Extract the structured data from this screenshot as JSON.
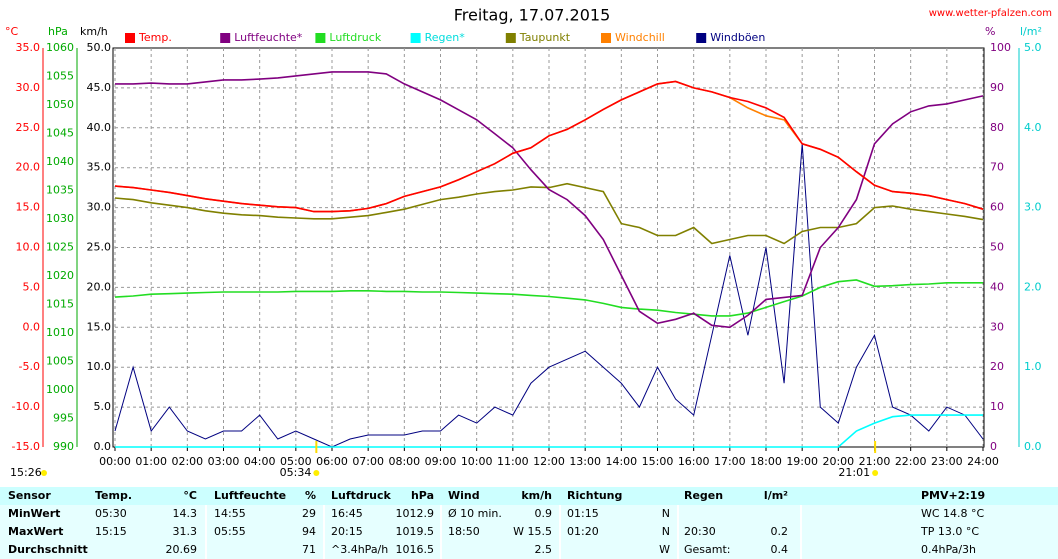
{
  "chart_data": {
    "type": "line",
    "title": "Freitag, 17.07.2015",
    "source": "www.wetter-pfalzen.com",
    "x": [
      0,
      0.5,
      1,
      1.5,
      2,
      2.5,
      3,
      3.5,
      4,
      4.5,
      5,
      5.5,
      6,
      6.5,
      7,
      7.5,
      8,
      8.5,
      9,
      9.5,
      10,
      10.5,
      11,
      11.5,
      12,
      12.5,
      13,
      13.5,
      14,
      14.5,
      15,
      15.5,
      16,
      16.5,
      17,
      17.5,
      18,
      18.5,
      19,
      19.5,
      20,
      20.5,
      21,
      21.5,
      22,
      22.5,
      23,
      23.5,
      24
    ],
    "xlim": [
      0,
      24
    ],
    "xticks": [
      {
        "value": 0,
        "label": "00:00"
      },
      {
        "value": 1,
        "label": "01:00"
      },
      {
        "value": 2,
        "label": "02:00"
      },
      {
        "value": 3,
        "label": "03:00"
      },
      {
        "value": 4,
        "label": "04:00"
      },
      {
        "value": 5,
        "label": "05:00"
      },
      {
        "value": 6,
        "label": "06:00"
      },
      {
        "value": 7,
        "label": "07:00"
      },
      {
        "value": 8,
        "label": "08:00"
      },
      {
        "value": 9,
        "label": "09:00"
      },
      {
        "value": 10,
        "label": "10:00"
      },
      {
        "value": 11,
        "label": "11:00"
      },
      {
        "value": 12,
        "label": "12:00"
      },
      {
        "value": 13,
        "label": "13:00"
      },
      {
        "value": 14,
        "label": "14:00"
      },
      {
        "value": 15,
        "label": "15:00"
      },
      {
        "value": 16,
        "label": "16:00"
      },
      {
        "value": 17,
        "label": "17:00"
      },
      {
        "value": 18,
        "label": "18:00"
      },
      {
        "value": 19,
        "label": "19:00"
      },
      {
        "value": 20,
        "label": "20:00"
      },
      {
        "value": 21,
        "label": "21:00"
      },
      {
        "value": 22,
        "label": "22:00"
      },
      {
        "value": 23,
        "label": "23:00"
      },
      {
        "value": 24,
        "label": "24:00"
      }
    ],
    "axes": [
      {
        "label": "°C",
        "color": "#ff0000",
        "side": "left",
        "lim": [
          -15,
          35
        ],
        "ticks": [
          {
            "value": 35,
            "label": "35.0"
          },
          {
            "value": 30,
            "label": "30.0"
          },
          {
            "value": 25,
            "label": "25.0"
          },
          {
            "value": 20,
            "label": "20.0"
          },
          {
            "value": 15,
            "label": "15.0"
          },
          {
            "value": 10,
            "label": "10.0"
          },
          {
            "value": 5,
            "label": "5.0"
          },
          {
            "value": 0,
            "label": "0.0"
          },
          {
            "value": -5,
            "label": "-5.0"
          },
          {
            "value": -10,
            "label": "-10.0"
          },
          {
            "value": -15,
            "label": "-15.0"
          }
        ]
      },
      {
        "label": "hPa",
        "color": "#00aa00",
        "side": "left",
        "lim": [
          990,
          1060
        ],
        "ticks": [
          1060,
          1055,
          1050,
          1045,
          1040,
          1035,
          1030,
          1025,
          1020,
          1015,
          1010,
          1005,
          1000,
          995,
          990
        ]
      },
      {
        "label": "km/h",
        "color": "#000000",
        "side": "left",
        "lim": [
          0,
          50
        ],
        "ticks": [
          {
            "value": 50,
            "label": "50.0"
          },
          {
            "value": 45,
            "label": "45.0"
          },
          {
            "value": 40,
            "label": "40.0"
          },
          {
            "value": 35,
            "label": "35.0"
          },
          {
            "value": 30,
            "label": "30.0"
          },
          {
            "value": 25,
            "label": "25.0"
          },
          {
            "value": 20,
            "label": "20.0"
          },
          {
            "value": 15,
            "label": "15.0"
          },
          {
            "value": 10,
            "label": "10.0"
          },
          {
            "value": 5,
            "label": "5.0"
          },
          {
            "value": 0,
            "label": "0.0"
          }
        ]
      },
      {
        "label": "%",
        "color": "#800080",
        "side": "right",
        "lim": [
          0,
          100
        ],
        "ticks": [
          100,
          90,
          80,
          70,
          60,
          50,
          40,
          30,
          20,
          10,
          0
        ]
      },
      {
        "label": "l/m²",
        "color": "#00cccc",
        "side": "right",
        "lim": [
          0,
          5
        ],
        "ticks": [
          {
            "value": 5,
            "label": "5.0"
          },
          {
            "value": 4,
            "label": "4.0"
          },
          {
            "value": 3,
            "label": "3.0"
          },
          {
            "value": 2,
            "label": "2.0"
          },
          {
            "value": 1,
            "label": "1.0"
          },
          {
            "value": 0,
            "label": "0.0"
          }
        ]
      }
    ],
    "grid": true,
    "series": [
      {
        "name": "Temp.",
        "color": "#ff0000",
        "axis": 0,
        "values": [
          17.7,
          17.5,
          17.2,
          16.9,
          16.5,
          16.1,
          15.8,
          15.5,
          15.3,
          15.1,
          15.0,
          14.5,
          14.5,
          14.6,
          14.9,
          15.5,
          16.4,
          17.0,
          17.6,
          18.5,
          19.5,
          20.5,
          21.8,
          22.5,
          24.0,
          24.8,
          26.0,
          27.3,
          28.5,
          29.5,
          30.5,
          30.8,
          30.0,
          29.5,
          28.8,
          28.3,
          27.5,
          26.3,
          23.0,
          22.3,
          21.3,
          19.5,
          17.8,
          17.0,
          16.8,
          16.5,
          16.0,
          15.5,
          14.8
        ]
      },
      {
        "name": "Luftfeuchte*",
        "color": "#800080",
        "axis": 3,
        "values": [
          91,
          91,
          91.2,
          91,
          91,
          91.5,
          92,
          92,
          92.2,
          92.5,
          93,
          93.5,
          94,
          94,
          94,
          93.5,
          91,
          89,
          87,
          84.5,
          82,
          78.5,
          75,
          69.5,
          64.5,
          62,
          58,
          52,
          43,
          34,
          31,
          32,
          33.5,
          30.5,
          30,
          33,
          37,
          37.5,
          38,
          50,
          55,
          62,
          76,
          81,
          84,
          85.5,
          86,
          87,
          88
        ]
      },
      {
        "name": "Luftdruck",
        "color": "#22dd22",
        "axis": 1,
        "values": [
          1016.3,
          1016.5,
          1016.8,
          1016.9,
          1017,
          1017.1,
          1017.2,
          1017.2,
          1017.2,
          1017.2,
          1017.3,
          1017.3,
          1017.3,
          1017.4,
          1017.4,
          1017.3,
          1017.3,
          1017.2,
          1017.2,
          1017.1,
          1017,
          1016.9,
          1016.8,
          1016.6,
          1016.4,
          1016.1,
          1015.8,
          1015.2,
          1014.5,
          1014.2,
          1014,
          1013.6,
          1013.3,
          1013,
          1013,
          1013.5,
          1014.5,
          1015.5,
          1016.5,
          1018,
          1019,
          1019.3,
          1018.2,
          1018.3,
          1018.5,
          1018.6,
          1018.8,
          1018.8,
          1018.8
        ]
      },
      {
        "name": "Regen*",
        "color": "#00ffff",
        "axis": 4,
        "values": [
          0,
          0,
          0,
          0,
          0,
          0,
          0,
          0,
          0,
          0,
          0,
          0,
          0,
          0,
          0,
          0,
          0,
          0,
          0,
          0,
          0,
          0,
          0,
          0,
          0,
          0,
          0,
          0,
          0,
          0,
          0,
          0,
          0,
          0,
          0,
          0,
          0,
          0,
          0,
          0,
          0,
          0.2,
          0.3,
          0.38,
          0.4,
          0.4,
          0.4,
          0.4,
          0.4
        ]
      },
      {
        "name": "Taupunkt",
        "color": "#808000",
        "axis": 0,
        "values": [
          16.2,
          16.0,
          15.6,
          15.3,
          15.0,
          14.6,
          14.3,
          14.1,
          14.0,
          13.8,
          13.7,
          13.6,
          13.6,
          13.8,
          14.0,
          14.4,
          14.8,
          15.4,
          16.0,
          16.3,
          16.7,
          17.0,
          17.2,
          17.6,
          17.5,
          18.0,
          17.5,
          17.0,
          13.0,
          12.5,
          11.5,
          11.5,
          12.5,
          10.5,
          11.0,
          11.5,
          11.5,
          10.5,
          12.0,
          12.5,
          12.5,
          13.0,
          15.0,
          15.2,
          14.8,
          14.5,
          14.2,
          13.9,
          13.5
        ]
      },
      {
        "name": "Windchill",
        "color": "#ff8000",
        "axis": 0,
        "values": [
          17.7,
          17.5,
          17.2,
          16.9,
          16.5,
          16.1,
          15.8,
          15.5,
          15.3,
          15.1,
          15.0,
          14.5,
          14.5,
          14.6,
          14.9,
          15.5,
          16.4,
          17.0,
          17.6,
          18.5,
          19.5,
          20.5,
          21.8,
          22.5,
          24.0,
          24.8,
          26.0,
          27.3,
          28.5,
          29.5,
          30.5,
          30.8,
          30.0,
          29.5,
          28.8,
          27.5,
          26.5,
          26.0,
          23.0,
          22.3,
          21.3,
          19.5,
          17.8,
          17.0,
          16.8,
          16.5,
          16.0,
          15.5,
          14.8
        ]
      },
      {
        "name": "Windböen",
        "color": "#000080",
        "axis": 2,
        "values": [
          2,
          10,
          2,
          5,
          2,
          1,
          2,
          2,
          4,
          1,
          2,
          1,
          0,
          1,
          1.5,
          1.5,
          1.5,
          2,
          2,
          4,
          3,
          5,
          4,
          8,
          10,
          11,
          12,
          10,
          8,
          5,
          10,
          6,
          4,
          14,
          24,
          14,
          25,
          8,
          38,
          5,
          3,
          10,
          14,
          5,
          4,
          2,
          5,
          4,
          1
        ]
      }
    ],
    "time": "15:26",
    "sunrise": {
      "value": 5.567,
      "label": "05:34"
    },
    "sunset": {
      "value": 21.017,
      "label": "21:01"
    }
  },
  "table": {
    "header": [
      "Sensor",
      "Temp.",
      "°C",
      "Luftfeuchte",
      "%",
      "Luftdruck",
      "hPa",
      "Wind",
      "km/h",
      "Richtung",
      null,
      "Regen",
      "l/m²",
      "PMV+2:19"
    ],
    "rows": [
      [
        "MinWert",
        "05:30",
        "14.3",
        "14:55",
        "29",
        "16:45",
        "1012.9",
        "Ø 10 min.",
        "0.9",
        "01:15",
        "N",
        null,
        null,
        "WC 14.8 °C"
      ],
      [
        "MaxWert",
        "15:15",
        "31.3",
        "05:55",
        "94",
        "20:15",
        "1019.5",
        "18:50",
        "W 15.5",
        "01:20",
        "N",
        "20:30",
        "0.2",
        "TP 13.0 °C"
      ],
      [
        "Durchschnitt",
        null,
        "20.69",
        null,
        "71",
        "^3.4hPa/h",
        "1016.5",
        null,
        "2.5",
        null,
        "W",
        "Gesamt:",
        "0.4",
        "0.4hPa/3h"
      ]
    ]
  }
}
